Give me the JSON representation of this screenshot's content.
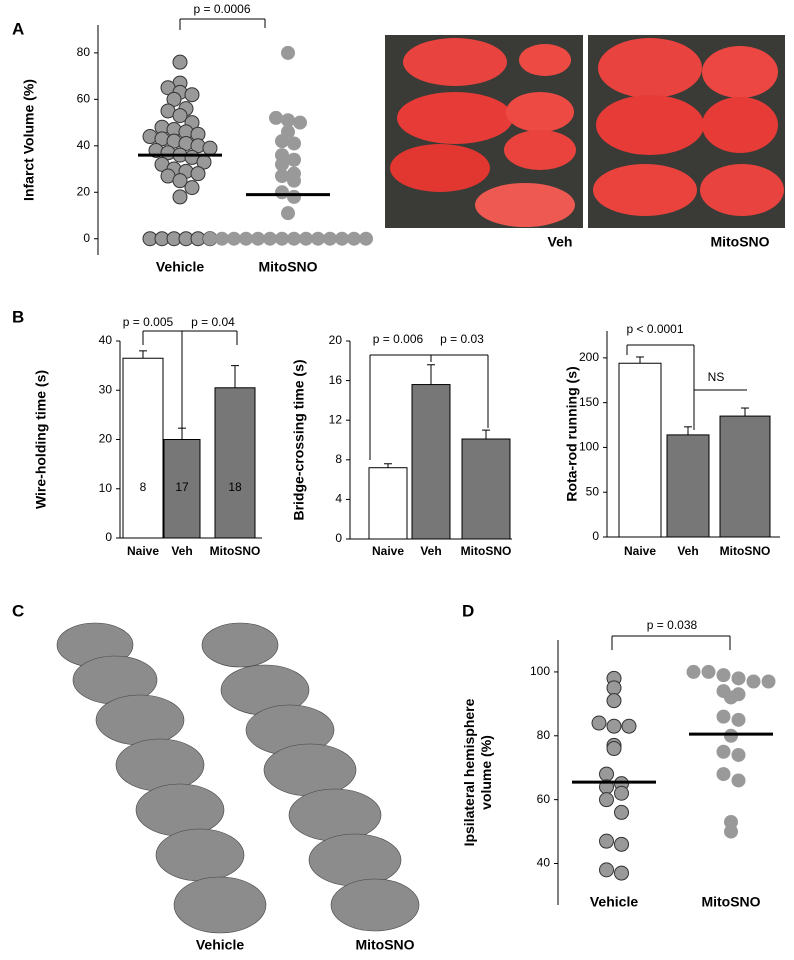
{
  "panel_labels": [
    "A",
    "B",
    "C",
    "D"
  ],
  "image_labels": {
    "A": [
      "Veh",
      "MitoSNO"
    ],
    "C": [
      "Vehicle",
      "MitoSNO"
    ]
  },
  "chart_data": [
    {
      "type": "dot",
      "ylabel": "Infarct Volume (%)",
      "categories": [
        "Vehicle",
        "MitoSNO"
      ],
      "values": [
        [
          76,
          67,
          65,
          63,
          62,
          60,
          56,
          55,
          53,
          50,
          48,
          47,
          46,
          45,
          44,
          43,
          42,
          41,
          40,
          39,
          38,
          37,
          36,
          35,
          33,
          32,
          30,
          29,
          28,
          27,
          25,
          22,
          18,
          0,
          0,
          0,
          0,
          0,
          0
        ],
        [
          80,
          52,
          51,
          50,
          46,
          42,
          41,
          36,
          34,
          32,
          28,
          27,
          25,
          20,
          18,
          11,
          0,
          0,
          0,
          0,
          0,
          0,
          0,
          0,
          0,
          0,
          0,
          0,
          0,
          0
        ]
      ],
      "means": [
        36,
        19
      ],
      "colors": [
        "#999999",
        "#999999"
      ],
      "annotations": [
        "p = 0.0006"
      ],
      "ylim": [
        -7,
        92
      ],
      "yticks": [
        0,
        20,
        40,
        60,
        80
      ]
    },
    {
      "type": "bar",
      "ylabel": "Wire-holding time (s)",
      "categories": [
        "Naive",
        "Veh",
        "MitoSNO"
      ],
      "values": [
        36.5,
        20,
        30.5
      ],
      "errors": [
        1.5,
        2.3,
        4.5
      ],
      "n": [
        8,
        17,
        18
      ],
      "colors": [
        "#ffffff",
        "#777777",
        "#777777"
      ],
      "annotations": [
        "p = 0.005",
        "p = 0.04"
      ],
      "ylim": [
        0,
        40
      ],
      "yticks": [
        0,
        10,
        20,
        30,
        40
      ]
    },
    {
      "type": "bar",
      "ylabel": "Bridge-crossing time (s)",
      "categories": [
        "Naive",
        "Veh",
        "MitoSNO"
      ],
      "values": [
        7.2,
        15.6,
        10.1
      ],
      "errors": [
        0.4,
        2,
        0.9
      ],
      "colors": [
        "#ffffff",
        "#777777",
        "#777777"
      ],
      "annotations": [
        "p = 0.006",
        "p = 0.03"
      ],
      "ylim": [
        0,
        20
      ],
      "yticks": [
        0,
        4,
        8,
        12,
        16,
        20
      ]
    },
    {
      "type": "bar",
      "ylabel": "Rota-rod running (s)",
      "categories": [
        "Naive",
        "Veh",
        "MitoSNO"
      ],
      "values": [
        194,
        114,
        135
      ],
      "errors": [
        7,
        9,
        9
      ],
      "colors": [
        "#ffffff",
        "#777777",
        "#777777"
      ],
      "annotations": [
        "p < 0.0001",
        "NS"
      ],
      "ylim": [
        0,
        230
      ],
      "yticks": [
        0,
        50,
        100,
        150,
        200
      ]
    },
    {
      "type": "dot",
      "ylabel": "Ipsilateral hemisphere volume (%)",
      "categories": [
        "Vehicle",
        "MitoSNO"
      ],
      "values": [
        [
          98,
          95,
          91,
          84,
          83,
          83,
          77,
          76,
          68,
          65,
          64,
          62,
          60,
          56,
          47,
          46,
          38,
          37
        ],
        [
          100,
          100,
          99,
          98,
          97,
          97,
          94,
          93,
          92,
          86,
          85,
          80,
          75,
          74,
          68,
          66,
          53,
          50
        ]
      ],
      "means": [
        65.5,
        80.5
      ],
      "colors": [
        "#999999",
        "#999999"
      ],
      "annotations": [
        "p = 0.038"
      ],
      "ylim": [
        27,
        110
      ],
      "yticks": [
        40,
        60,
        80,
        100
      ]
    }
  ]
}
